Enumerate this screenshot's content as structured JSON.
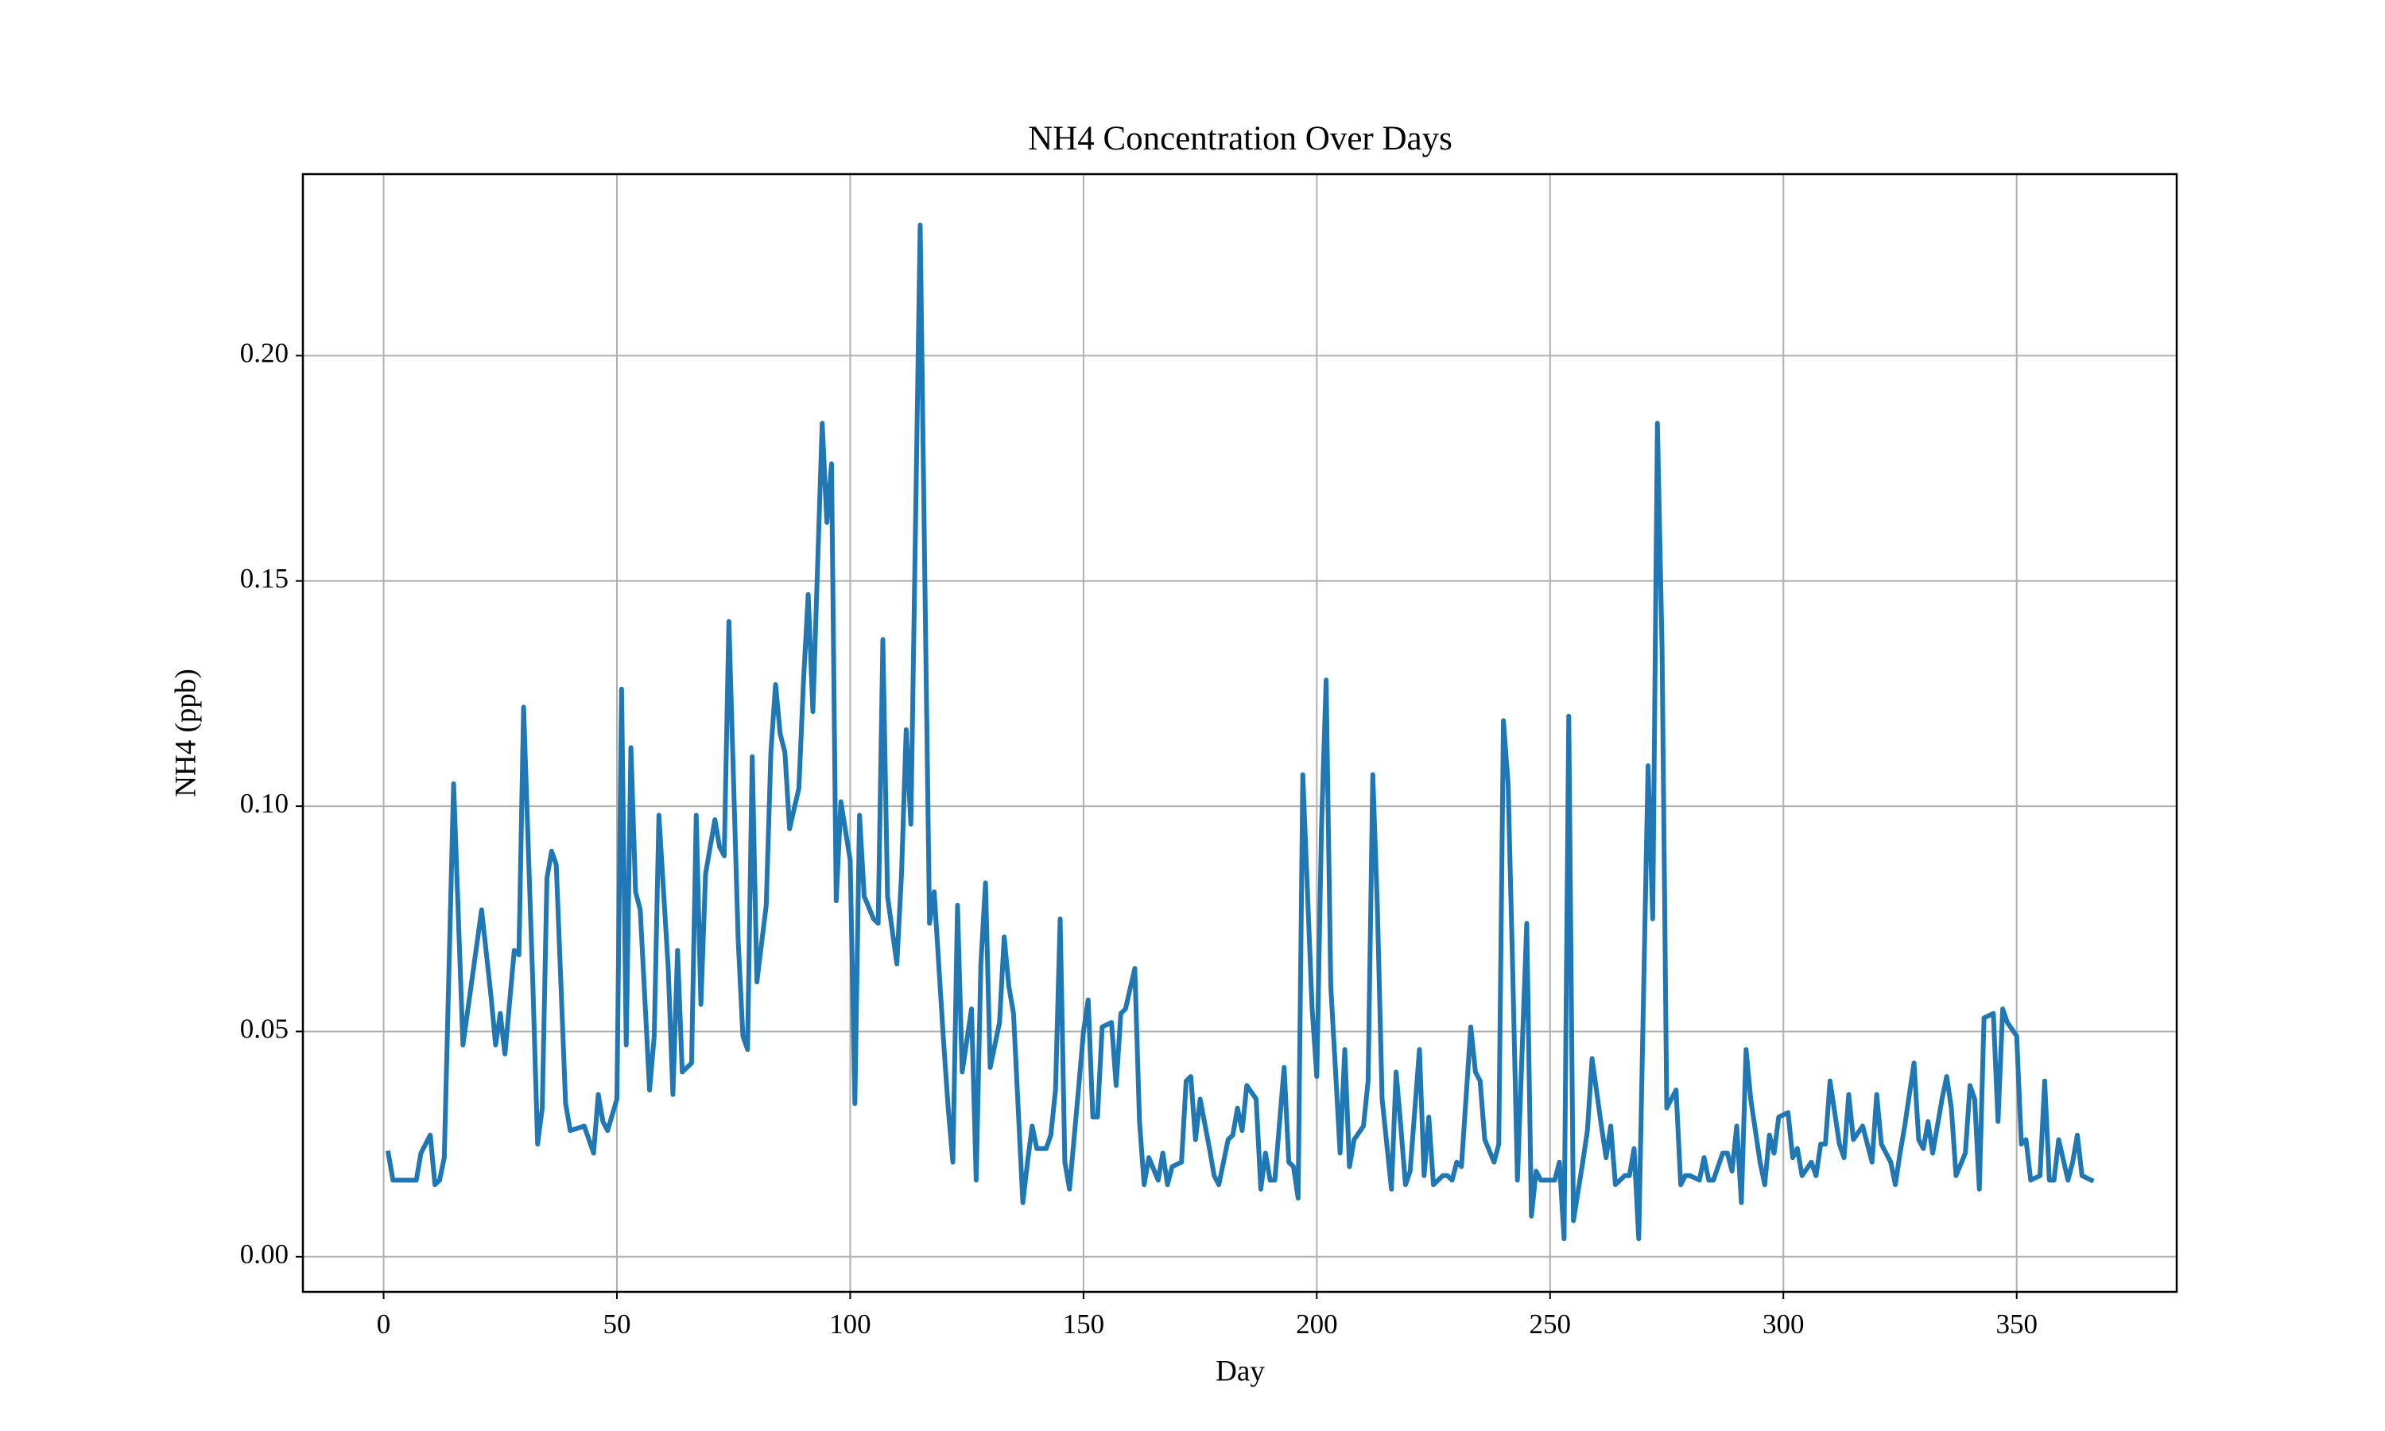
{
  "chart_data": {
    "type": "line",
    "title": "NH4 Concentration Over Days",
    "xlabel": "Day",
    "ylabel": "NH4 (ppb)",
    "color": "#1f77b4",
    "grid": true,
    "x": [
      1,
      2,
      4,
      7,
      8,
      10,
      11,
      12,
      13,
      15,
      17,
      19,
      21,
      23,
      24,
      25,
      26,
      28,
      29,
      30,
      32,
      33,
      34,
      35,
      36,
      37,
      39,
      40,
      43,
      44,
      45,
      46,
      47,
      48,
      50,
      51,
      52,
      53,
      54,
      55,
      57,
      58,
      59,
      61,
      62,
      63,
      64,
      66,
      67,
      68,
      69,
      71,
      72,
      73,
      74,
      76,
      77,
      78,
      79,
      80,
      82,
      83,
      84,
      85,
      86,
      87,
      89,
      90,
      91,
      92,
      94,
      95,
      96,
      97,
      98,
      100,
      101,
      102,
      103,
      105,
      106,
      107,
      108,
      110,
      111,
      112,
      113,
      115,
      116,
      117,
      118,
      120,
      121,
      122,
      123,
      124,
      126,
      127,
      128,
      129,
      130,
      132,
      133,
      134,
      135,
      137,
      138,
      139,
      140,
      142,
      143,
      144,
      145,
      146,
      147,
      149,
      150,
      151,
      152,
      153,
      154,
      156,
      157,
      158,
      159,
      161,
      162,
      163,
      164,
      166,
      167,
      168,
      169,
      171,
      172,
      173,
      174,
      175,
      177,
      178,
      179,
      181,
      182,
      183,
      184,
      185,
      187,
      188,
      189,
      190,
      191,
      193,
      194,
      195,
      196,
      197,
      199,
      200,
      201,
      202,
      203,
      205,
      206,
      207,
      208,
      210,
      211,
      212,
      213,
      214,
      216,
      217,
      218,
      219,
      220,
      222,
      223,
      224,
      225,
      227,
      228,
      229,
      230,
      231,
      233,
      234,
      235,
      236,
      238,
      239,
      240,
      241,
      242,
      243,
      245,
      246,
      247,
      248,
      249,
      251,
      252,
      253,
      254,
      255,
      257,
      258,
      259,
      261,
      262,
      263,
      264,
      266,
      267,
      268,
      269,
      271,
      272,
      273,
      274,
      275,
      277,
      278,
      279,
      280,
      282,
      283,
      284,
      285,
      287,
      288,
      289,
      290,
      291,
      292,
      293,
      295,
      296,
      297,
      298,
      299,
      301,
      302,
      303,
      304,
      306,
      307,
      308,
      309,
      310,
      312,
      313,
      314,
      315,
      317,
      318,
      319,
      320,
      321,
      323,
      324,
      325,
      326,
      328,
      329,
      330,
      331,
      332,
      334,
      335,
      336,
      337,
      339,
      340,
      341,
      342,
      343,
      345,
      346,
      347,
      348,
      350,
      351,
      352,
      353,
      355,
      356,
      357,
      358,
      359,
      361,
      362,
      363,
      364,
      366
    ],
    "values": [
      0.023,
      0.017,
      0.017,
      0.017,
      0.023,
      0.027,
      0.016,
      0.017,
      0.022,
      0.105,
      0.047,
      0.062,
      0.077,
      0.058,
      0.047,
      0.054,
      0.045,
      0.068,
      0.067,
      0.122,
      0.06,
      0.025,
      0.033,
      0.084,
      0.09,
      0.087,
      0.034,
      0.028,
      0.029,
      0.026,
      0.023,
      0.036,
      0.03,
      0.028,
      0.035,
      0.126,
      0.047,
      0.113,
      0.081,
      0.077,
      0.037,
      0.049,
      0.098,
      0.064,
      0.036,
      0.068,
      0.041,
      0.043,
      0.098,
      0.056,
      0.085,
      0.097,
      0.091,
      0.089,
      0.141,
      0.07,
      0.049,
      0.046,
      0.111,
      0.061,
      0.078,
      0.112,
      0.127,
      0.116,
      0.112,
      0.095,
      0.104,
      0.128,
      0.147,
      0.121,
      0.185,
      0.163,
      0.176,
      0.079,
      0.101,
      0.088,
      0.034,
      0.098,
      0.08,
      0.075,
      0.074,
      0.137,
      0.08,
      0.065,
      0.085,
      0.117,
      0.096,
      0.229,
      0.15,
      0.074,
      0.081,
      0.048,
      0.033,
      0.021,
      0.078,
      0.041,
      0.055,
      0.017,
      0.065,
      0.083,
      0.042,
      0.052,
      0.071,
      0.06,
      0.054,
      0.012,
      0.021,
      0.029,
      0.024,
      0.024,
      0.027,
      0.037,
      0.075,
      0.021,
      0.015,
      0.038,
      0.05,
      0.057,
      0.031,
      0.031,
      0.051,
      0.052,
      0.038,
      0.054,
      0.055,
      0.064,
      0.03,
      0.016,
      0.022,
      0.017,
      0.023,
      0.016,
      0.02,
      0.021,
      0.039,
      0.04,
      0.026,
      0.035,
      0.024,
      0.018,
      0.016,
      0.026,
      0.027,
      0.033,
      0.028,
      0.038,
      0.035,
      0.015,
      0.023,
      0.017,
      0.017,
      0.042,
      0.021,
      0.02,
      0.013,
      0.107,
      0.055,
      0.04,
      0.095,
      0.128,
      0.06,
      0.023,
      0.046,
      0.02,
      0.026,
      0.029,
      0.039,
      0.107,
      0.077,
      0.035,
      0.015,
      0.041,
      0.029,
      0.016,
      0.019,
      0.046,
      0.018,
      0.031,
      0.016,
      0.018,
      0.018,
      0.017,
      0.021,
      0.02,
      0.051,
      0.041,
      0.039,
      0.026,
      0.021,
      0.025,
      0.119,
      0.105,
      0.063,
      0.017,
      0.074,
      0.009,
      0.019,
      0.017,
      0.017,
      0.017,
      0.021,
      0.004,
      0.12,
      0.008,
      0.021,
      0.028,
      0.044,
      0.029,
      0.022,
      0.029,
      0.016,
      0.018,
      0.018,
      0.024,
      0.004,
      0.109,
      0.075,
      0.185,
      0.135,
      0.033,
      0.037,
      0.016,
      0.018,
      0.018,
      0.017,
      0.022,
      0.017,
      0.017,
      0.023,
      0.023,
      0.019,
      0.029,
      0.012,
      0.046,
      0.035,
      0.021,
      0.016,
      0.027,
      0.023,
      0.031,
      0.032,
      0.022,
      0.024,
      0.018,
      0.021,
      0.018,
      0.025,
      0.025,
      0.039,
      0.025,
      0.022,
      0.036,
      0.026,
      0.029,
      0.025,
      0.021,
      0.036,
      0.025,
      0.021,
      0.016,
      0.023,
      0.029,
      0.043,
      0.026,
      0.024,
      0.03,
      0.023,
      0.035,
      0.04,
      0.033,
      0.018,
      0.023,
      0.038,
      0.035,
      0.015,
      0.053,
      0.054,
      0.03,
      0.055,
      0.052,
      0.049,
      0.025,
      0.026,
      0.017,
      0.018,
      0.039,
      0.017,
      0.017,
      0.026,
      0.017,
      0.021,
      0.027,
      0.018,
      0.017
    ],
    "xlim": [
      -17.3,
      384.3
    ],
    "ylim": [
      -0.0078,
      0.2403
    ],
    "xticks": [
      0,
      50,
      100,
      150,
      200,
      250,
      300,
      350
    ],
    "yticks": [
      {
        "value": 0,
        "label": "0.00"
      },
      {
        "value": 0.05,
        "label": "0.05"
      },
      {
        "value": 0.1,
        "label": "0.10"
      },
      {
        "value": 0.15,
        "label": "0.15"
      },
      {
        "value": 0.2,
        "label": "0.20"
      }
    ]
  }
}
